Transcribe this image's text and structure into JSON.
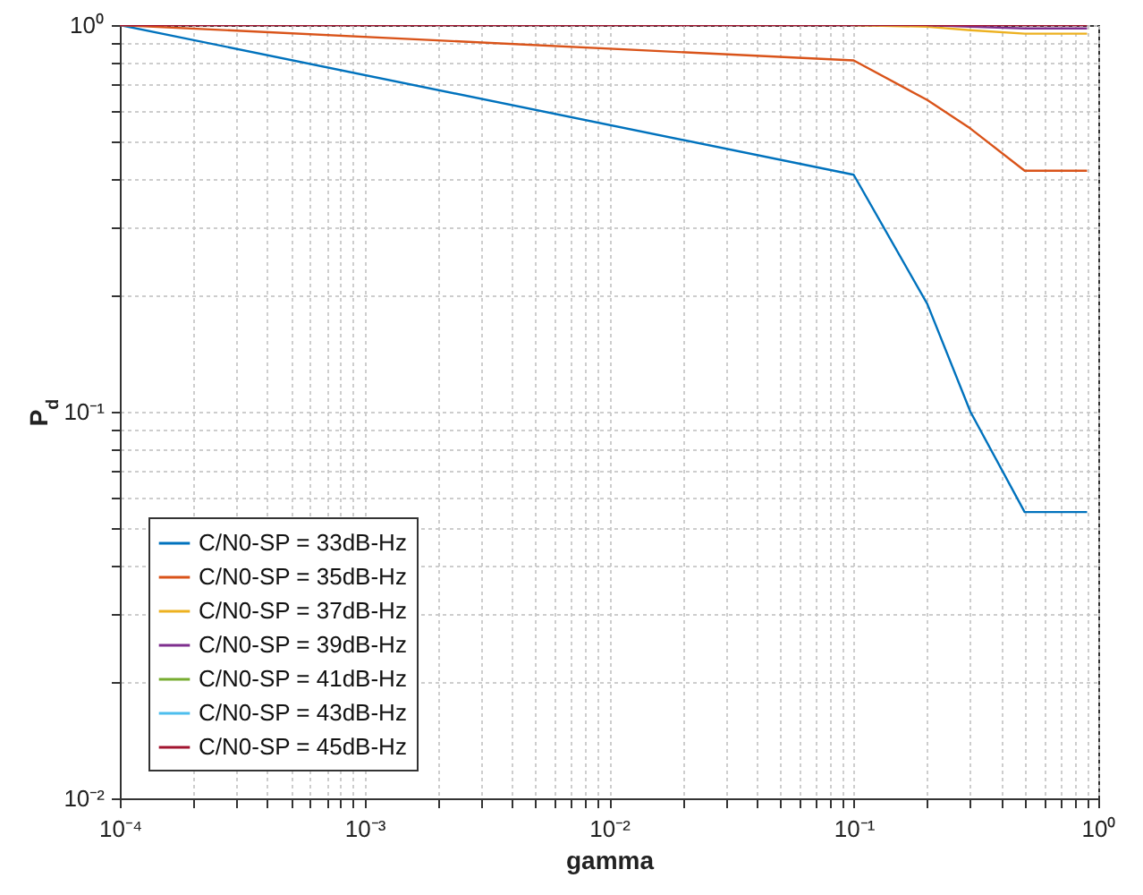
{
  "chart_data": {
    "type": "line",
    "xlabel": "gamma",
    "ylabel": "P$_{d}$",
    "log": "xy",
    "grid": true,
    "legend": "bottom left",
    "marker": "none",
    "line_style": "solid",
    "x": [
      0.0001,
      0.1,
      0.2,
      0.3,
      0.5,
      0.9
    ],
    "xlim": [
      0.0001,
      1
    ],
    "ylim": [
      0.01,
      1
    ],
    "xticks": [
      {
        "value": 0.0001,
        "label": "10⁻⁴"
      },
      {
        "value": 0.0002,
        "label": null
      },
      {
        "value": 0.0003,
        "label": null
      },
      {
        "value": 0.0004,
        "label": null
      },
      {
        "value": 0.0005,
        "label": null
      },
      {
        "value": 0.0006,
        "label": null
      },
      {
        "value": 0.0007,
        "label": null
      },
      {
        "value": 0.0008,
        "label": null
      },
      {
        "value": 0.0009,
        "label": null
      },
      {
        "value": 0.001,
        "label": "10⁻³"
      },
      {
        "value": 0.002,
        "label": null
      },
      {
        "value": 0.003,
        "label": null
      },
      {
        "value": 0.004,
        "label": null
      },
      {
        "value": 0.005,
        "label": null
      },
      {
        "value": 0.006,
        "label": null
      },
      {
        "value": 0.007,
        "label": null
      },
      {
        "value": 0.008,
        "label": null
      },
      {
        "value": 0.009,
        "label": null
      },
      {
        "value": 0.01,
        "label": "10⁻²"
      },
      {
        "value": 0.02,
        "label": null
      },
      {
        "value": 0.03,
        "label": null
      },
      {
        "value": 0.04,
        "label": null
      },
      {
        "value": 0.05,
        "label": null
      },
      {
        "value": 0.06,
        "label": null
      },
      {
        "value": 0.07,
        "label": null
      },
      {
        "value": 0.08,
        "label": null
      },
      {
        "value": 0.09,
        "label": null
      },
      {
        "value": 0.1,
        "label": "10⁻¹"
      },
      {
        "value": 0.2,
        "label": null
      },
      {
        "value": 0.3,
        "label": null
      },
      {
        "value": 0.4,
        "label": null
      },
      {
        "value": 0.5,
        "label": null
      },
      {
        "value": 0.6,
        "label": null
      },
      {
        "value": 0.7,
        "label": null
      },
      {
        "value": 0.8,
        "label": null
      },
      {
        "value": 0.9,
        "label": null
      },
      {
        "value": 1,
        "label": "10⁰"
      }
    ],
    "yticks": [
      {
        "value": 0.01,
        "label": "10⁻²"
      },
      {
        "value": 0.02,
        "label": null
      },
      {
        "value": 0.03,
        "label": null
      },
      {
        "value": 0.04,
        "label": null
      },
      {
        "value": 0.05,
        "label": null
      },
      {
        "value": 0.06,
        "label": null
      },
      {
        "value": 0.07,
        "label": null
      },
      {
        "value": 0.08,
        "label": null
      },
      {
        "value": 0.09,
        "label": null
      },
      {
        "value": 0.1,
        "label": "10⁻¹"
      },
      {
        "value": 0.2,
        "label": null
      },
      {
        "value": 0.3,
        "label": null
      },
      {
        "value": 0.4,
        "label": null
      },
      {
        "value": 0.5,
        "label": null
      },
      {
        "value": 0.6,
        "label": null
      },
      {
        "value": 0.7,
        "label": null
      },
      {
        "value": 0.8,
        "label": null
      },
      {
        "value": 0.9,
        "label": null
      },
      {
        "value": 1,
        "label": "10⁰"
      }
    ],
    "series": [
      {
        "name": "C/N0-SP = 33dB-Hz",
        "color": "#0072bd",
        "values": [
          1,
          0.41,
          0.19,
          0.1,
          0.055,
          0.055
        ]
      },
      {
        "name": "C/N0-SP = 35dB-Hz",
        "color": "#d95319",
        "values": [
          1,
          0.81,
          0.64,
          0.54,
          0.42,
          0.42
        ]
      },
      {
        "name": "C/N0-SP = 37dB-Hz",
        "color": "#edb120",
        "values": [
          null,
          1,
          0.99,
          0.97,
          0.95,
          0.95
        ]
      },
      {
        "name": "C/N0-SP = 39dB-Hz",
        "color": "#7e2f8e",
        "values": [
          null,
          null,
          1,
          0.99,
          0.98,
          0.98
        ]
      },
      {
        "name": "C/N0-SP = 41dB-Hz",
        "color": "#77ac30",
        "values": [
          null,
          null,
          null,
          null,
          null,
          null
        ]
      },
      {
        "name": "C/N0-SP = 43dB-Hz",
        "color": "#4dbeee",
        "values": [
          null,
          null,
          null,
          null,
          null,
          null
        ]
      },
      {
        "name": "C/N0-SP = 45dB-Hz",
        "color": "#a2142f",
        "values": [
          1,
          1,
          1,
          1,
          1,
          1
        ]
      }
    ]
  }
}
